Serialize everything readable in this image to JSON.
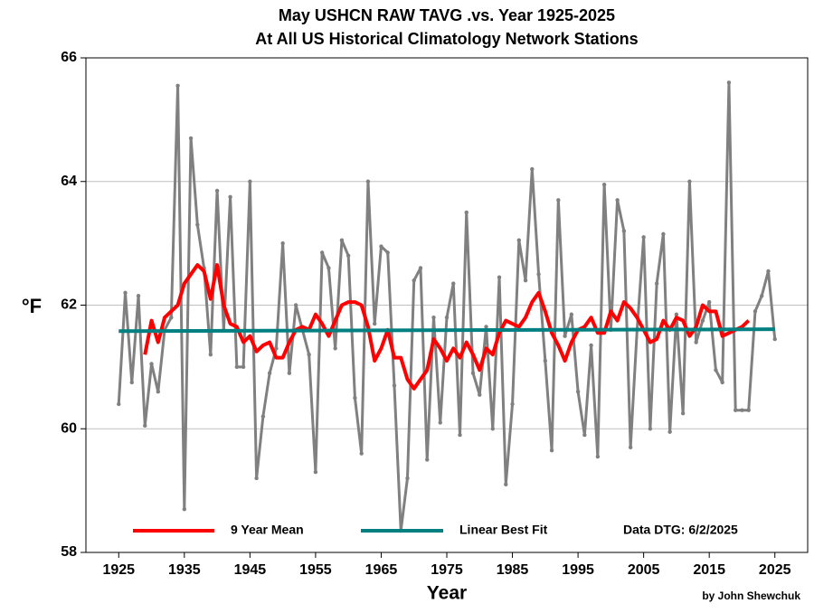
{
  "chart_data": {
    "type": "line",
    "title": "May USHCN RAW TAVG .vs. Year 1925-2025",
    "subtitle": "At All US Historical Climatology Network Stations",
    "xlabel": "Year",
    "ylabel": "°F",
    "annotation": "Data DTG: 6/2/2025",
    "credit": "by John Shewchuk",
    "x": [
      1925,
      1926,
      1927,
      1928,
      1929,
      1930,
      1931,
      1932,
      1933,
      1934,
      1935,
      1936,
      1937,
      1938,
      1939,
      1940,
      1941,
      1942,
      1943,
      1944,
      1945,
      1946,
      1947,
      1948,
      1949,
      1950,
      1951,
      1952,
      1953,
      1954,
      1955,
      1956,
      1957,
      1958,
      1959,
      1960,
      1961,
      1962,
      1963,
      1964,
      1965,
      1966,
      1967,
      1968,
      1969,
      1970,
      1971,
      1972,
      1973,
      1974,
      1975,
      1976,
      1977,
      1978,
      1979,
      1980,
      1981,
      1982,
      1983,
      1984,
      1985,
      1986,
      1987,
      1988,
      1989,
      1990,
      1991,
      1992,
      1993,
      1994,
      1995,
      1996,
      1997,
      1998,
      1999,
      2000,
      2001,
      2002,
      2003,
      2004,
      2005,
      2006,
      2007,
      2008,
      2009,
      2010,
      2011,
      2012,
      2013,
      2014,
      2015,
      2016,
      2017,
      2018,
      2019,
      2020,
      2021,
      2022,
      2023,
      2024,
      2025
    ],
    "series": [
      {
        "color": "#808080",
        "markers": true,
        "values": [
          60.4,
          62.2,
          60.75,
          62.15,
          60.05,
          61.05,
          60.6,
          61.6,
          61.8,
          65.55,
          58.7,
          64.7,
          63.3,
          62.6,
          61.2,
          63.85,
          61.6,
          63.75,
          61.0,
          61.0,
          64.0,
          59.2,
          60.2,
          60.9,
          61.3,
          63.0,
          60.9,
          62.0,
          61.6,
          61.2,
          59.3,
          62.85,
          62.6,
          61.3,
          63.05,
          62.8,
          60.5,
          59.6,
          64.0,
          61.7,
          62.95,
          62.85,
          60.7,
          58.35,
          59.2,
          62.4,
          62.6,
          59.5,
          61.8,
          60.1,
          61.8,
          62.35,
          59.9,
          63.5,
          60.9,
          60.55,
          61.65,
          60.0,
          62.45,
          59.1,
          60.4,
          63.05,
          62.4,
          64.2,
          62.5,
          61.1,
          59.65,
          63.7,
          61.5,
          61.85,
          60.6,
          59.9,
          61.35,
          59.55,
          63.95,
          61.6,
          63.7,
          63.2,
          59.7,
          61.6,
          63.1,
          60.0,
          62.35,
          63.15,
          59.95,
          61.85,
          60.25,
          64.0,
          61.4,
          61.75,
          62.05,
          60.95,
          60.75,
          65.6,
          60.3,
          60.3,
          60.3,
          61.9,
          62.15,
          62.55,
          61.45
        ]
      },
      {
        "name": "9 Year Mean",
        "color": "#ff0000",
        "values": [
          null,
          null,
          null,
          null,
          61.2,
          61.75,
          61.4,
          61.8,
          61.9,
          62.0,
          62.35,
          62.5,
          62.65,
          62.55,
          62.1,
          62.65,
          62.0,
          61.7,
          61.65,
          61.4,
          61.5,
          61.25,
          61.35,
          61.4,
          61.15,
          61.15,
          61.4,
          61.6,
          61.65,
          61.6,
          61.85,
          61.7,
          61.5,
          61.75,
          62.0,
          62.05,
          62.05,
          62.0,
          61.65,
          61.1,
          61.3,
          61.6,
          61.15,
          61.15,
          60.8,
          60.65,
          60.8,
          60.95,
          61.45,
          61.3,
          61.1,
          61.3,
          61.15,
          61.4,
          61.2,
          60.95,
          61.3,
          61.2,
          61.55,
          61.75,
          61.7,
          61.65,
          61.8,
          62.05,
          62.2,
          61.9,
          61.55,
          61.35,
          61.1,
          61.4,
          61.6,
          61.65,
          61.8,
          61.55,
          61.55,
          61.9,
          61.75,
          62.05,
          61.95,
          61.8,
          61.6,
          61.4,
          61.45,
          61.75,
          61.6,
          61.8,
          61.75,
          61.5,
          61.65,
          62.0,
          61.9,
          61.9,
          61.5,
          61.55,
          61.6,
          61.65,
          61.75,
          null,
          null,
          null,
          null
        ]
      },
      {
        "name": "Linear Best Fit",
        "color": "#008080",
        "x": [
          1925,
          2025
        ],
        "values": [
          61.58,
          61.61
        ]
      }
    ],
    "xlim": [
      1920,
      2030
    ],
    "xticks": [
      1925,
      1935,
      1945,
      1955,
      1965,
      1975,
      1985,
      1995,
      2005,
      2015,
      2025
    ],
    "ylim": [
      58,
      66
    ],
    "yticks": [
      58,
      60,
      62,
      64,
      66
    ],
    "grid": true
  }
}
